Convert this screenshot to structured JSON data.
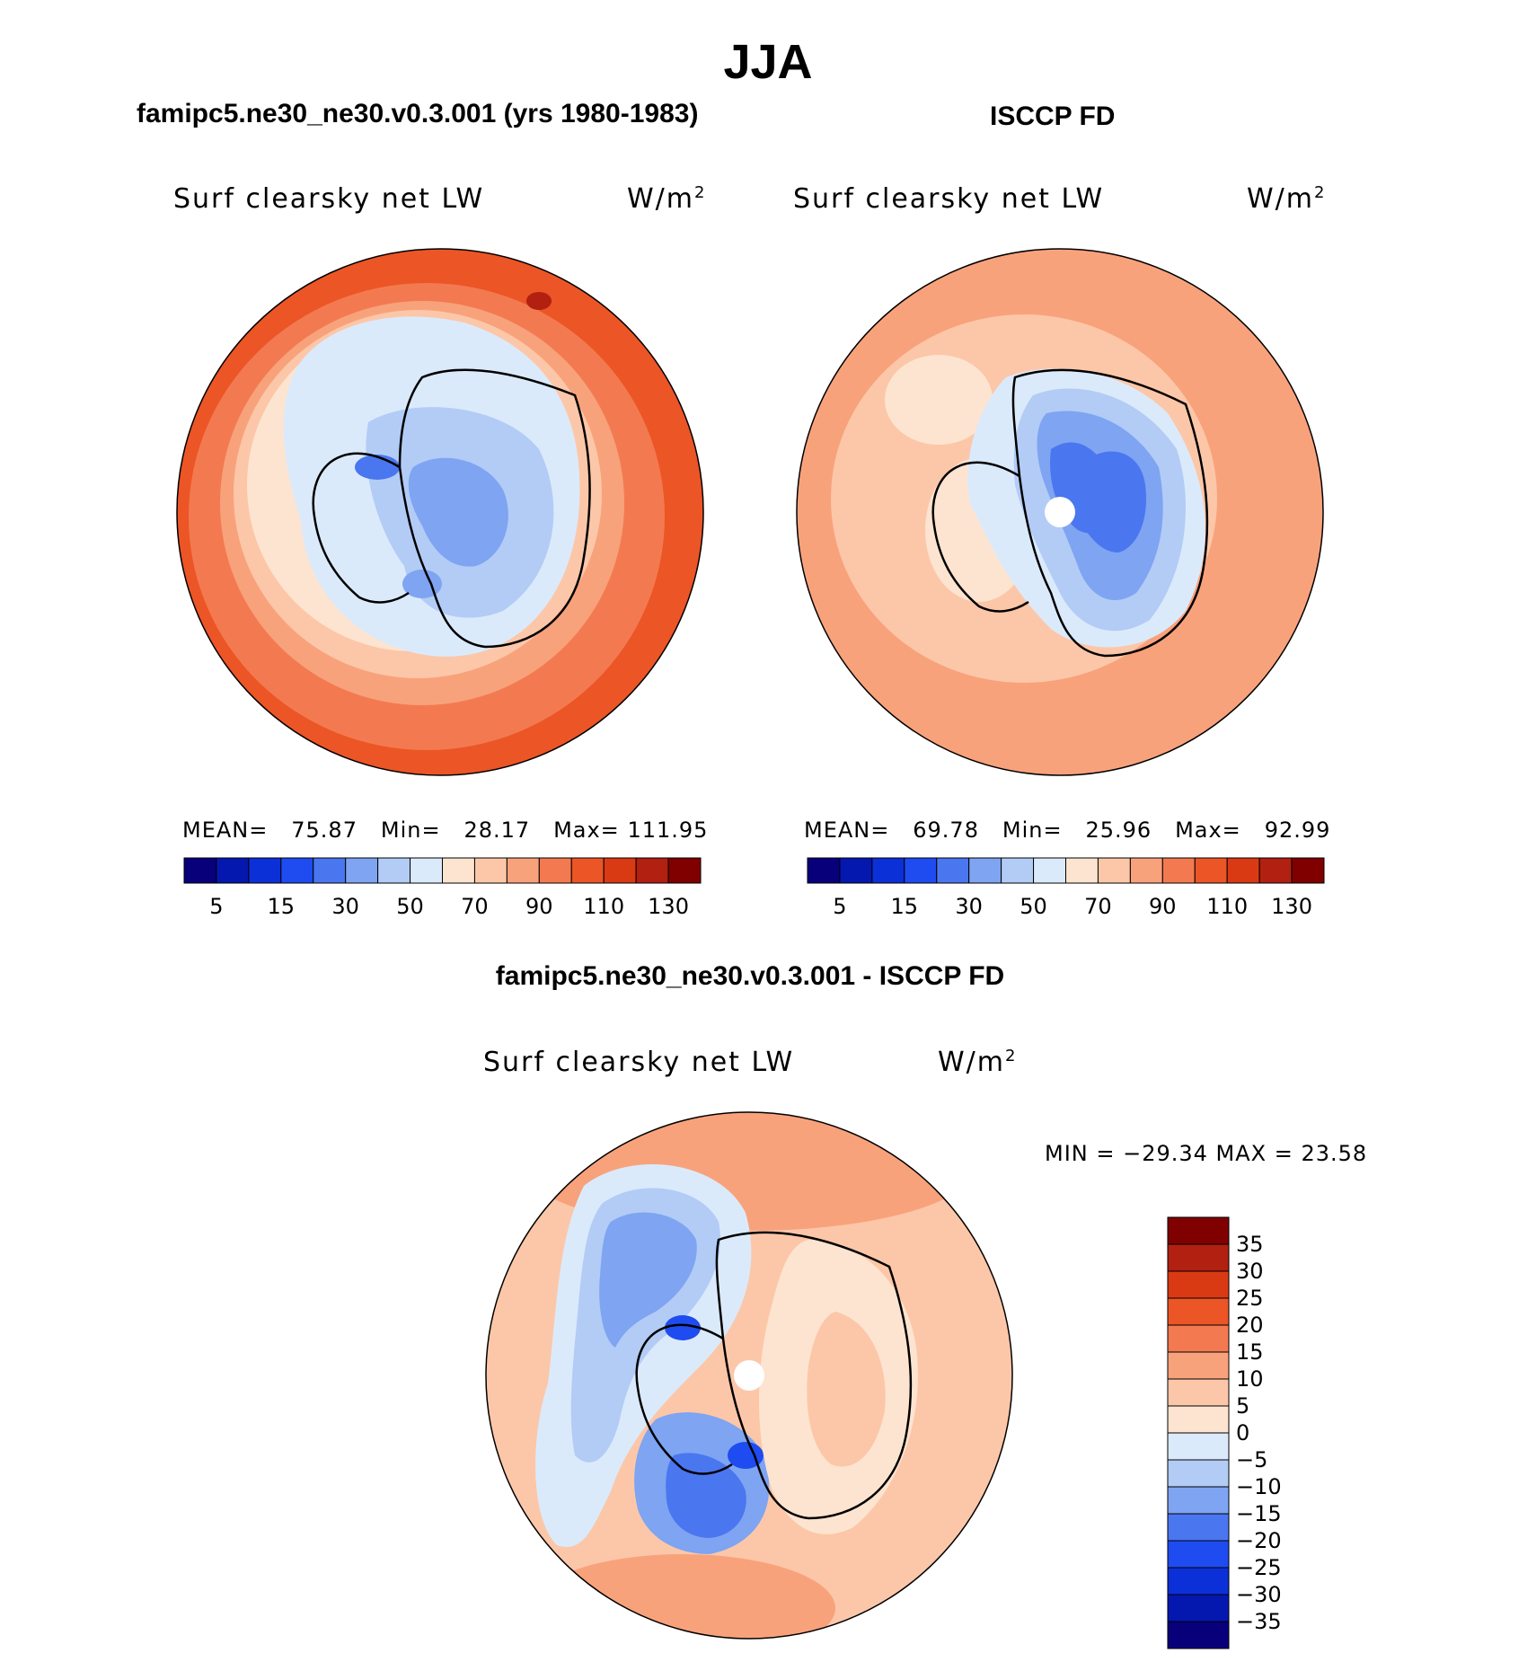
{
  "title": "JJA",
  "panels": [
    {
      "title": "famipc5.ne30_ne30.v0.3.001 (yrs 1980-1983)",
      "variable": "Surf clearsky net LW",
      "units": "W/m",
      "units_exp": "2",
      "stats": {
        "mean_label": "MEAN=",
        "mean": "75.87",
        "min_label": "Min=",
        "min": "28.17",
        "max_label": "Max=",
        "max": "111.95"
      }
    },
    {
      "title": "ISCCP FD",
      "variable": "Surf clearsky net LW",
      "units": "W/m",
      "units_exp": "2",
      "stats": {
        "mean_label": "MEAN=",
        "mean": "69.78",
        "min_label": "Min=",
        "min": "25.96",
        "max_label": "Max=",
        "max": "92.99"
      }
    }
  ],
  "colorbar_top": {
    "tick_labels": [
      "5",
      "15",
      "30",
      "50",
      "70",
      "90",
      "110",
      "130"
    ],
    "colors": [
      "#08007a",
      "#0418b0",
      "#0c30d8",
      "#1e4cf0",
      "#4a76f0",
      "#7ea4f2",
      "#b2ccf6",
      "#dbeafb",
      "#fde4d0",
      "#fcc7a8",
      "#f8a27c",
      "#f37a50",
      "#ec5526",
      "#d93a14",
      "#b12010",
      "#800000"
    ]
  },
  "difference": {
    "title": "famipc5.ne30_ne30.v0.3.001 - ISCCP FD",
    "variable": "Surf clearsky net LW",
    "units": "W/m",
    "units_exp": "2",
    "stats": "MIN = −29.34 MAX =   23.58",
    "colorbar": {
      "tick_labels": [
        "35",
        "30",
        "25",
        "20",
        "15",
        "10",
        "5",
        "0",
        "−5",
        "−10",
        "−15",
        "−20",
        "−25",
        "−30",
        "−35"
      ],
      "colors": [
        "#800000",
        "#b12010",
        "#d93a14",
        "#ec5526",
        "#f37a50",
        "#f8a27c",
        "#fcc7a8",
        "#fde4d0",
        "#dbeafb",
        "#b2ccf6",
        "#7ea4f2",
        "#4a76f0",
        "#1e4cf0",
        "#0c30d8",
        "#0418b0",
        "#08007a"
      ]
    }
  }
}
